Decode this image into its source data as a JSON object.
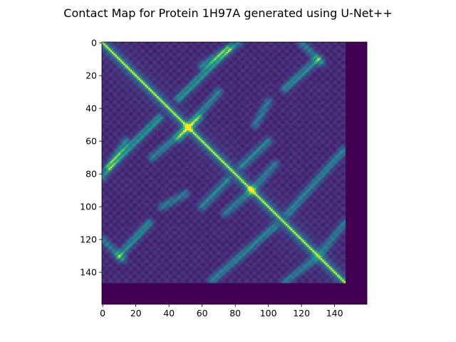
{
  "chart_data": {
    "type": "heatmap",
    "title": "Contact Map for Protein 1H97A generated using U-Net++",
    "xlabel": "",
    "ylabel": "",
    "matrix_size": 160,
    "protein_length": 147,
    "x_range": [
      0,
      159
    ],
    "y_range": [
      0,
      159
    ],
    "y_axis_inverted": true,
    "x_ticks": [
      0,
      20,
      40,
      60,
      80,
      100,
      120,
      140
    ],
    "y_ticks": [
      0,
      20,
      40,
      60,
      80,
      100,
      120,
      140
    ],
    "x_tick_labels": [
      "0",
      "20",
      "40",
      "60",
      "80",
      "100",
      "120",
      "140"
    ],
    "y_tick_labels": [
      "0",
      "20",
      "40",
      "60",
      "80",
      "100",
      "120",
      "140"
    ],
    "value_range": [
      0,
      1
    ],
    "colormap": "viridis",
    "grid": false,
    "legend": "none",
    "contact_bands": [
      {
        "i": [
          4,
          34
        ],
        "j": [
          76,
          46
        ],
        "shape": "antiparallel",
        "strength": 0.55
      },
      {
        "i": [
          0,
          14
        ],
        "j": [
          82,
          60
        ],
        "shape": "antiparallel",
        "strength": 0.45
      },
      {
        "i": [
          46,
          70
        ],
        "j": [
          58,
          30
        ],
        "shape": "antiparallel",
        "strength": 0.45
      },
      {
        "i": [
          10,
          28
        ],
        "j": [
          130,
          110
        ],
        "shape": "antiparallel",
        "strength": 0.5
      },
      {
        "i": [
          36,
          50
        ],
        "j": [
          100,
          92
        ],
        "shape": "antiparallel",
        "strength": 0.4
      },
      {
        "i": [
          60,
          75
        ],
        "j": [
          100,
          84
        ],
        "shape": "antiparallel",
        "strength": 0.45
      },
      {
        "i": [
          74,
          90
        ],
        "j": [
          104,
          90
        ],
        "shape": "antiparallel",
        "strength": 0.4
      },
      {
        "i": [
          66,
          104
        ],
        "j": [
          145,
          112
        ],
        "shape": "antiparallel",
        "strength": 0.45
      },
      {
        "i": [
          0,
          12
        ],
        "j": [
          120,
          132
        ],
        "shape": "parallel",
        "strength": 0.4
      },
      {
        "i": [
          110,
          128
        ],
        "j": [
          146,
          132
        ],
        "shape": "antiparallel",
        "strength": 0.4
      }
    ]
  },
  "colors": {
    "background": "#ffffff",
    "empty": "#440154",
    "low": "#472a7a",
    "mid": "#21918c",
    "high": "#fde725"
  }
}
